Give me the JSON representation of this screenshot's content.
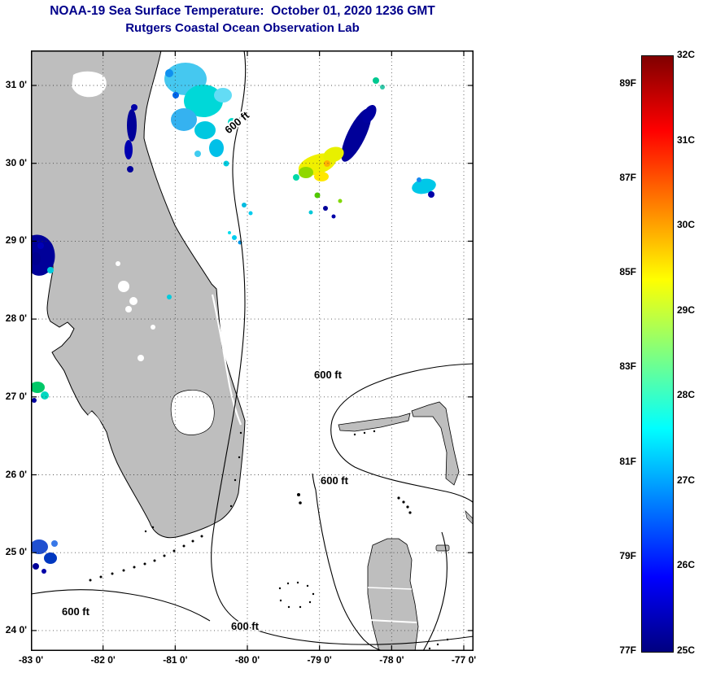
{
  "header": {
    "title": "NOAA-19 Sea Surface Temperature:  October 01, 2020 1236 GMT",
    "subtitle": "Rutgers Coastal Ocean Observation Lab",
    "title_color": "#00008B"
  },
  "map": {
    "x_axis": {
      "ticks": [
        "-83 0'",
        "-82 0'",
        "-81 0'",
        "-80 0'",
        "-79 0'",
        "-78 0'",
        "-77 0'"
      ]
    },
    "y_axis": {
      "ticks": [
        "31 0'",
        "30 0'",
        "29 0'",
        "28 0'",
        "27 0'",
        "26 0'",
        "25 0'",
        "24 0'"
      ]
    },
    "contour_labels": [
      "600 ft",
      "600 ft",
      "600 ft",
      "600 ft",
      "600 ft"
    ],
    "land_color": "#BEBEBE"
  },
  "colorbar": {
    "celsius_labels": [
      "32C",
      "31C",
      "30C",
      "29C",
      "28C",
      "27C",
      "26C",
      "25C"
    ],
    "fahrenheit_labels": [
      "89F",
      "87F",
      "85F",
      "83F",
      "81F",
      "79F",
      "77F"
    ],
    "min_c": 25,
    "max_c": 32,
    "gradient_stops": [
      "#800000",
      "#FF0000",
      "#FFFF00",
      "#00FFFF",
      "#0000FF",
      "#000080"
    ]
  }
}
